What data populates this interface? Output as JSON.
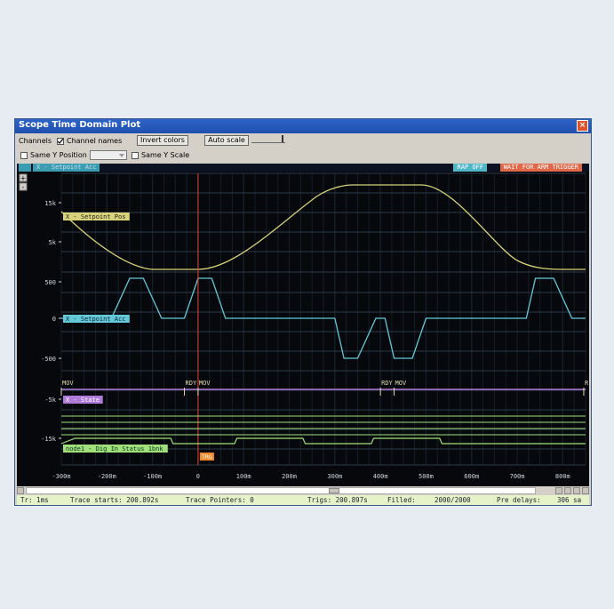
{
  "window": {
    "title": "Scope Time Domain Plot",
    "close_icon": "close-icon"
  },
  "toolbar": {
    "channels_label": "Channels",
    "channel_names_label": "Channel names",
    "channel_names_checked": true,
    "invert_colors_label": "Invert colors",
    "auto_scale_label": "Auto scale",
    "same_y_position_label": "Same Y Position",
    "same_y_scale_label": "Same Y Scale"
  },
  "strip": {
    "channel_label": "X - Setpoint Acc",
    "badge_rap_off": "RAP OFF",
    "badge_wait": "WAIT FOR ARM TRIGGER"
  },
  "plot": {
    "y_ticks": [
      "15k",
      "5k",
      "500",
      "0",
      "-500",
      "-5k",
      "-15k"
    ],
    "x_ticks": [
      "-300m",
      "-200m",
      "-100m",
      "0",
      "100m",
      "200m",
      "300m",
      "400m",
      "500m",
      "600m",
      "700m",
      "800m"
    ],
    "channel_labels": {
      "pos": "X - Setpoint Pos",
      "acc": "X - Setpoint Acc",
      "state": "X - State",
      "dig": "node1 - Dig In Status 1bnk"
    },
    "state_markers": [
      "MOV",
      "RDY",
      "MOV",
      "RDY",
      "MOV",
      "R"
    ],
    "trigger_label": "TRG",
    "zoom_in": "+",
    "zoom_out": "-"
  },
  "colors": {
    "pos": "#d8d27a",
    "acc": "#63c9d8",
    "state": "#b07ad8",
    "dig": "#9fe07a",
    "trigger": "#e8452c",
    "grid": "#2c3a4a"
  },
  "status": {
    "trigger": "Tr: 1ms",
    "trace_starts": "Trace starts: 200.892s",
    "trace_pointers": "Trace Pointers: 0",
    "trigs": "Trigs: 200.897s",
    "filled_label": "Filled:",
    "filled_value": "2000/2000",
    "pre_delays": "Pre delays:",
    "pre_delays_value": "306 sa"
  }
}
